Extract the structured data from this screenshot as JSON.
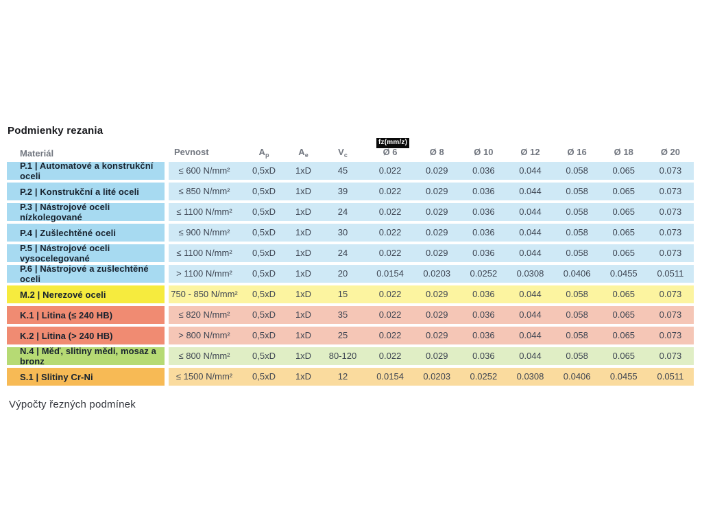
{
  "title": "Podmienky rezania",
  "section_below": "Výpočty řezných podmínek",
  "table": {
    "fz_badge": "fz(mm/z)",
    "headers": {
      "material": "Materiál",
      "pevnost": "Pevnost",
      "ap": {
        "base": "A",
        "sub": "p"
      },
      "ae": {
        "base": "A",
        "sub": "e"
      },
      "vc": {
        "base": "V",
        "sub": "c"
      },
      "diameters": [
        "Ø 6",
        "Ø 8",
        "Ø 10",
        "Ø 12",
        "Ø 16",
        "Ø 18",
        "Ø 20"
      ]
    },
    "color_groups": {
      "steel-blue": {
        "material_bg": "#a7daf1",
        "values_bg": "#cfe9f6"
      },
      "stainless-yellow": {
        "material_bg": "#f6eb3e",
        "values_bg": "#fcf4a0"
      },
      "castiron-salmon": {
        "material_bg": "#f08b72",
        "values_bg": "#f5c6b6"
      },
      "nonferrous-green": {
        "material_bg": "#b6da74",
        "values_bg": "#e0eec5"
      },
      "superalloy-orange": {
        "material_bg": "#f7ba55",
        "values_bg": "#fadb9e"
      }
    },
    "rows": [
      {
        "group": "steel-blue",
        "material": "P.1 | Automatové a konstrukční oceli",
        "pevnost": "≤ 600 N/mm²",
        "ap": "0,5xD",
        "ae": "1xD",
        "vc": "45",
        "fz": [
          "0.022",
          "0.029",
          "0.036",
          "0.044",
          "0.058",
          "0.065",
          "0.073"
        ]
      },
      {
        "group": "steel-blue",
        "material": "P.2 | Konstrukční a lité oceli",
        "pevnost": "≤ 850 N/mm²",
        "ap": "0,5xD",
        "ae": "1xD",
        "vc": "39",
        "fz": [
          "0.022",
          "0.029",
          "0.036",
          "0.044",
          "0.058",
          "0.065",
          "0.073"
        ]
      },
      {
        "group": "steel-blue",
        "material": "P.3 | Nástrojové oceli nízkolegované",
        "pevnost": "≤ 1100 N/mm²",
        "ap": "0,5xD",
        "ae": "1xD",
        "vc": "24",
        "fz": [
          "0.022",
          "0.029",
          "0.036",
          "0.044",
          "0.058",
          "0.065",
          "0.073"
        ]
      },
      {
        "group": "steel-blue",
        "material": "P.4 | Zušlechtěné oceli",
        "pevnost": "≤ 900 N/mm²",
        "ap": "0,5xD",
        "ae": "1xD",
        "vc": "30",
        "fz": [
          "0.022",
          "0.029",
          "0.036",
          "0.044",
          "0.058",
          "0.065",
          "0.073"
        ]
      },
      {
        "group": "steel-blue",
        "material": "P.5 | Nástrojové oceli vysocelegované",
        "pevnost": "≤ 1100 N/mm²",
        "ap": "0,5xD",
        "ae": "1xD",
        "vc": "24",
        "fz": [
          "0.022",
          "0.029",
          "0.036",
          "0.044",
          "0.058",
          "0.065",
          "0.073"
        ]
      },
      {
        "group": "steel-blue",
        "material": "P.6 | Nástrojové a zušlechtěné oceli",
        "pevnost": "> 1100 N/mm²",
        "ap": "0,5xD",
        "ae": "1xD",
        "vc": "20",
        "fz": [
          "0.0154",
          "0.0203",
          "0.0252",
          "0.0308",
          "0.0406",
          "0.0455",
          "0.0511"
        ]
      },
      {
        "group": "stainless-yellow",
        "material": "M.2 | Nerezové oceli",
        "pevnost": "750 - 850 N/mm²",
        "ap": "0,5xD",
        "ae": "1xD",
        "vc": "15",
        "fz": [
          "0.022",
          "0.029",
          "0.036",
          "0.044",
          "0.058",
          "0.065",
          "0.073"
        ]
      },
      {
        "group": "castiron-salmon",
        "material": "K.1 | Litina (≤ 240 HB)",
        "pevnost": "≤ 820 N/mm²",
        "ap": "0,5xD",
        "ae": "1xD",
        "vc": "35",
        "fz": [
          "0.022",
          "0.029",
          "0.036",
          "0.044",
          "0.058",
          "0.065",
          "0.073"
        ]
      },
      {
        "group": "castiron-salmon",
        "material": "K.2 | Litina (> 240 HB)",
        "pevnost": "> 800 N/mm²",
        "ap": "0,5xD",
        "ae": "1xD",
        "vc": "25",
        "fz": [
          "0.022",
          "0.029",
          "0.036",
          "0.044",
          "0.058",
          "0.065",
          "0.073"
        ]
      },
      {
        "group": "nonferrous-green",
        "material": "N.4 | Měď, slitiny mědi, mosaz a bronz",
        "pevnost": "≤ 800 N/mm²",
        "ap": "0,5xD",
        "ae": "1xD",
        "vc": "80-120",
        "fz": [
          "0.022",
          "0.029",
          "0.036",
          "0.044",
          "0.058",
          "0.065",
          "0.073"
        ]
      },
      {
        "group": "superalloy-orange",
        "material": "S.1 | Slitiny Cr-Ni",
        "pevnost": "≤ 1500 N/mm²",
        "ap": "0,5xD",
        "ae": "1xD",
        "vc": "12",
        "fz": [
          "0.0154",
          "0.0203",
          "0.0252",
          "0.0308",
          "0.0406",
          "0.0455",
          "0.0511"
        ]
      }
    ]
  }
}
